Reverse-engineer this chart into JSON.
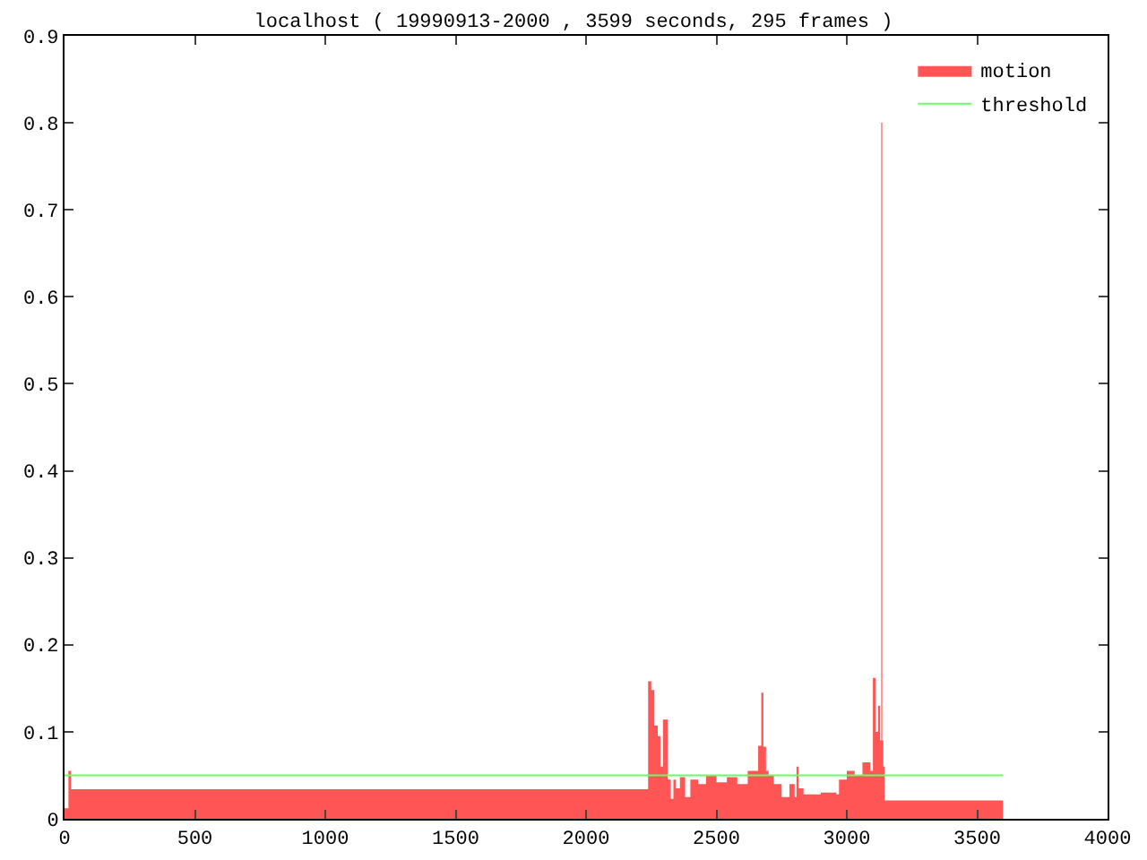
{
  "chart_data": {
    "type": "area",
    "title": "localhost ( 19990913-2000 , 3599 seconds, 295 frames )",
    "xlim": [
      0,
      4000
    ],
    "xticks": [
      0,
      500,
      1000,
      1500,
      2000,
      2500,
      3000,
      3500,
      4000
    ],
    "ylim": [
      0,
      0.9
    ],
    "yticks": [
      0,
      0.1,
      0.2,
      0.3,
      0.4,
      0.5,
      0.6,
      0.7,
      0.8,
      0.9
    ],
    "grid": false,
    "legend": "top right",
    "series": [
      {
        "name": "motion",
        "color": "#ff5555",
        "x": [
          0,
          15,
          25,
          2238,
          2250,
          2262,
          2275,
          2285,
          2295,
          2313,
          2325,
          2335,
          2345,
          2360,
          2380,
          2400,
          2430,
          2460,
          2500,
          2540,
          2580,
          2620,
          2660,
          2672,
          2680,
          2690,
          2700,
          2720,
          2750,
          2780,
          2800,
          2807,
          2815,
          2834,
          2900,
          2960,
          2970,
          3000,
          3030,
          3060,
          3090,
          3100,
          3110,
          3120,
          3128,
          3132,
          3136,
          3140,
          3145,
          3599
        ],
        "values": [
          0.012,
          0.055,
          0.034,
          0.158,
          0.148,
          0.107,
          0.095,
          0.06,
          0.114,
          0.045,
          0.023,
          0.045,
          0.035,
          0.048,
          0.025,
          0.045,
          0.04,
          0.05,
          0.042,
          0.048,
          0.04,
          0.055,
          0.084,
          0.145,
          0.083,
          0.055,
          0.05,
          0.04,
          0.025,
          0.04,
          0.025,
          0.06,
          0.035,
          0.028,
          0.03,
          0.028,
          0.045,
          0.055,
          0.05,
          0.065,
          0.055,
          0.162,
          0.1,
          0.13,
          0.09,
          0.8,
          0.09,
          0.06,
          0.021,
          0.021
        ]
      },
      {
        "name": "threshold",
        "type": "line",
        "color": "#66ff66",
        "x": [
          0,
          3599
        ],
        "values": [
          0.05,
          0.05
        ]
      }
    ]
  }
}
